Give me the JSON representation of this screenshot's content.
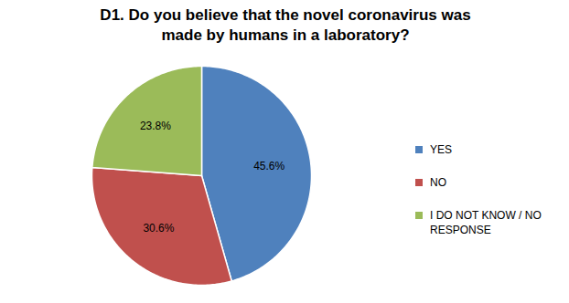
{
  "chart_data": {
    "type": "pie",
    "title": "D1. Do you believe that the novel coronavirus was made by humans in a laboratory?",
    "categories": [
      "YES",
      "NO",
      "I DO NOT KNOW / NO RESPONSE"
    ],
    "values": [
      45.6,
      30.6,
      23.8
    ],
    "value_labels": [
      "45.6%",
      "30.6%",
      "23.8%"
    ],
    "colors": [
      "#4f81bd",
      "#c0504d",
      "#9bbb59"
    ],
    "data_labels": true,
    "legend": "right"
  }
}
